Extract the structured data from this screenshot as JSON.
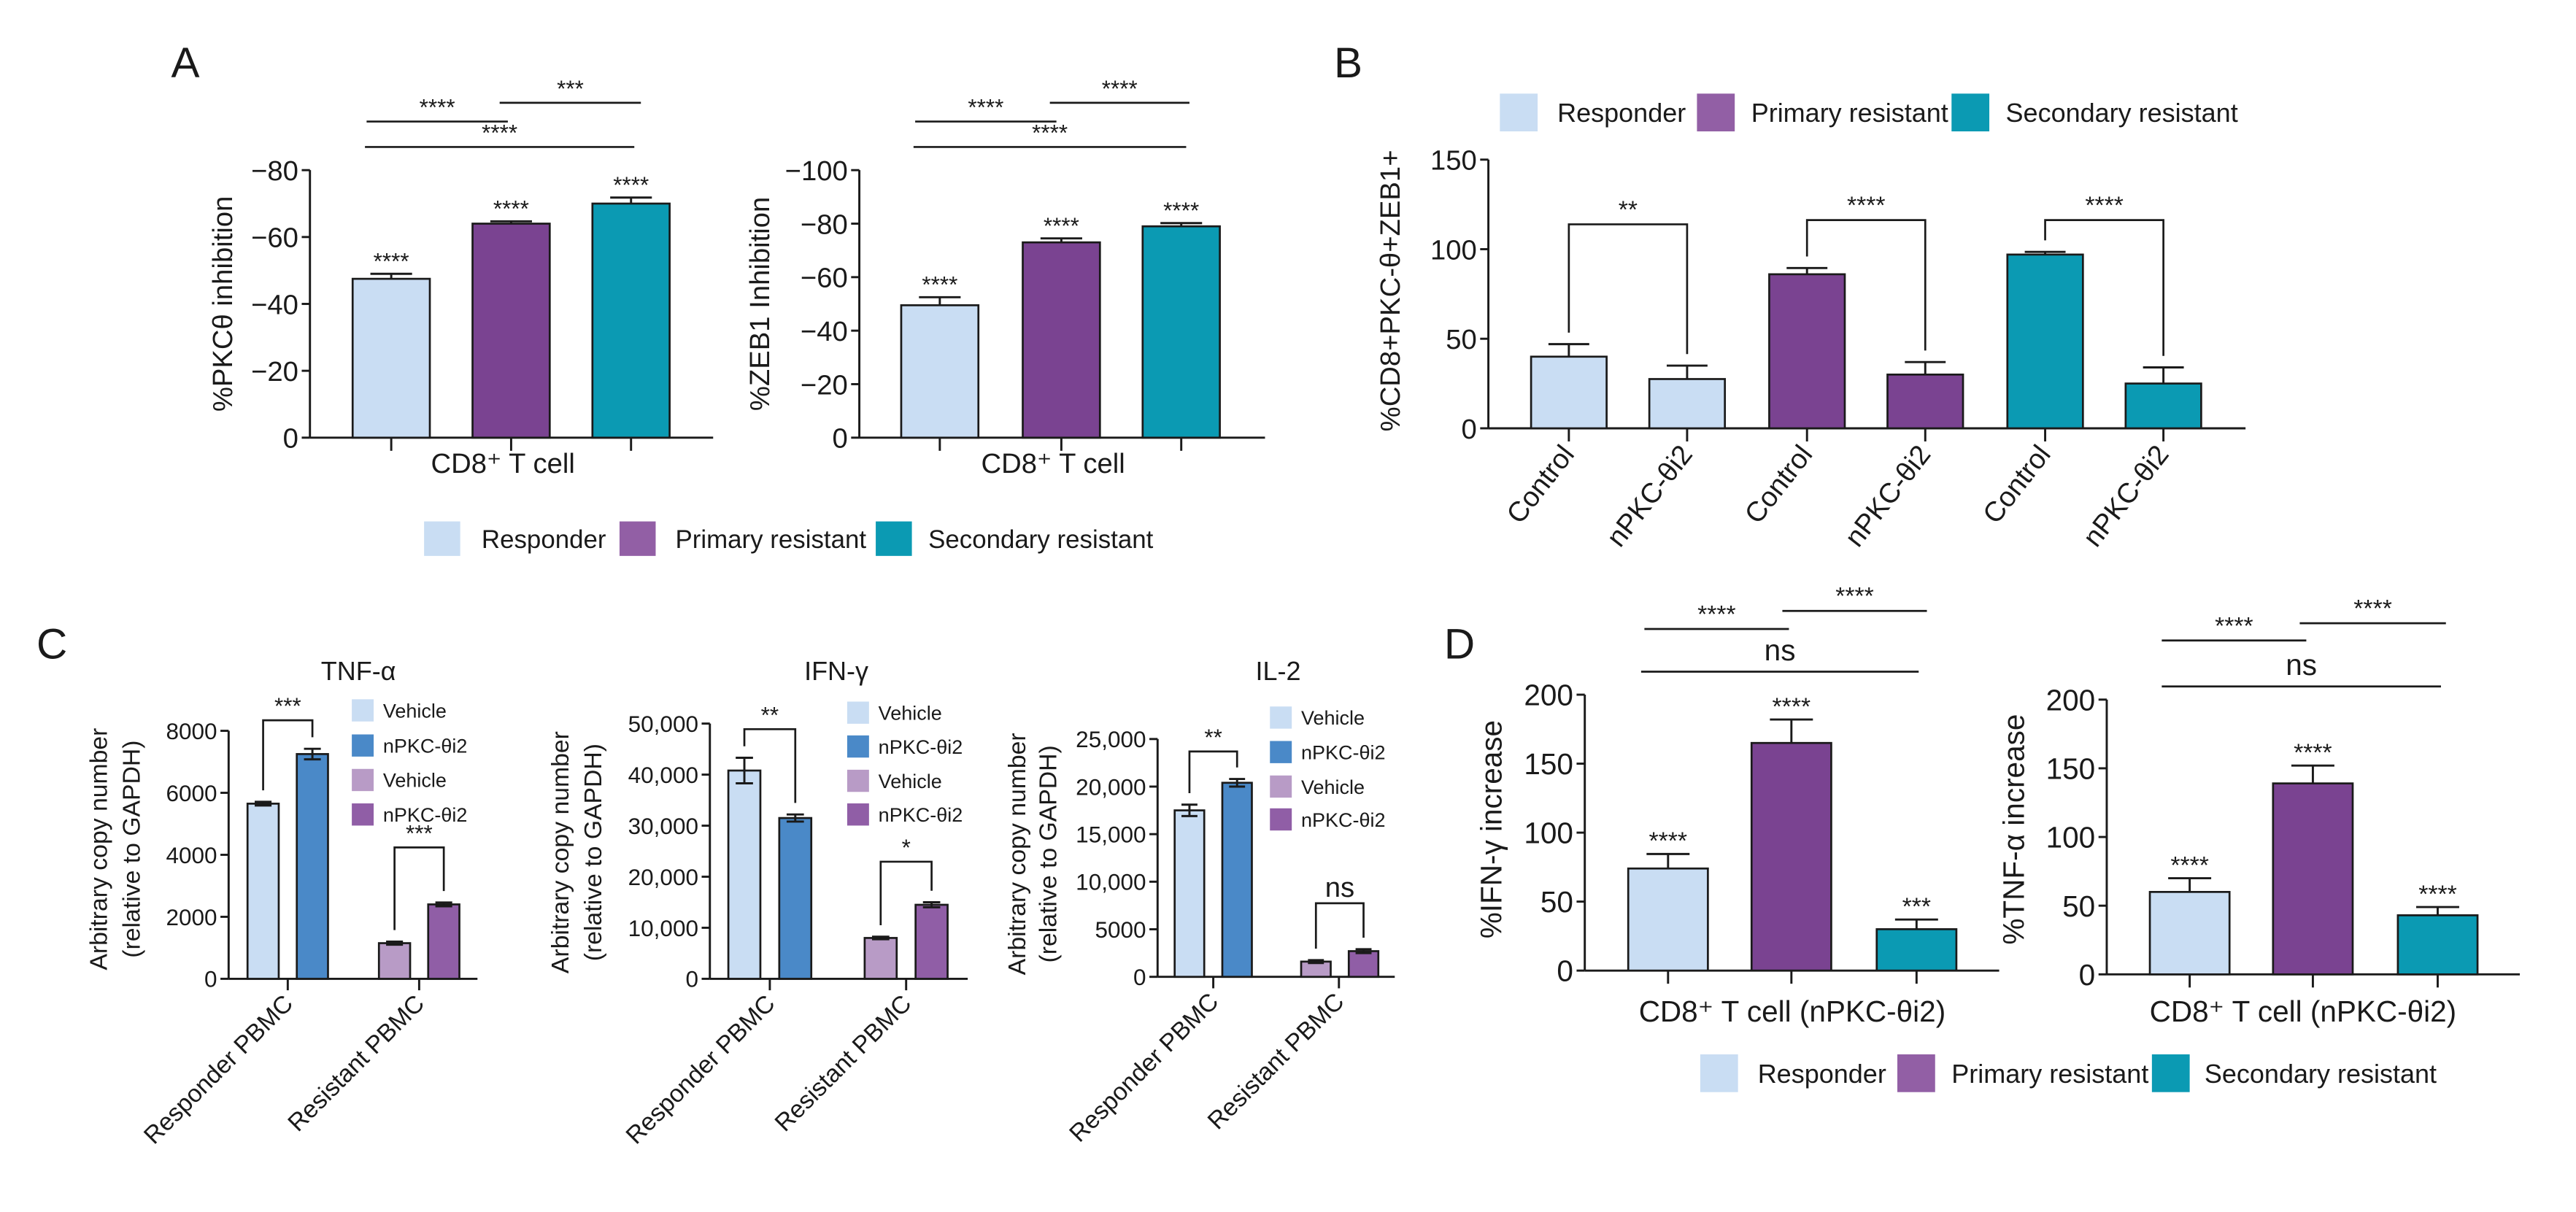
{
  "panel_letters": {
    "A": "A",
    "B": "B",
    "C": "C",
    "D": "D"
  },
  "legends": {
    "A": [
      {
        "label": "Responder",
        "color": "#c9ddf3"
      },
      {
        "label": "Primary resistant",
        "color": "#925fa5"
      },
      {
        "label": "Secondary resistant",
        "color": "#0b9ab3"
      }
    ],
    "B": [
      {
        "label": "Responder",
        "color": "#c9ddf3"
      },
      {
        "label": "Primary resistant",
        "color": "#925fa5"
      },
      {
        "label": "Secondary resistant",
        "color": "#0b9ab3"
      }
    ],
    "D": [
      {
        "label": "Responder",
        "color": "#c9ddf3"
      },
      {
        "label": "Primary resistant",
        "color": "#925fa5"
      },
      {
        "label": "Secondary resistant",
        "color": "#0b9ab3"
      }
    ]
  },
  "chart_data": [
    {
      "id": "A1",
      "panel": "A",
      "type": "bar",
      "title": "",
      "ylabel": "%PKCθ inhibition",
      "xlabel": "CD8⁺ T cell",
      "ylim": [
        0,
        -80
      ],
      "yticks": [
        0,
        -20,
        -40,
        -60,
        -80
      ],
      "ytick_labels": [
        "0",
        "−20",
        "−40",
        "−60",
        "−80"
      ],
      "bars": [
        {
          "group": "Responder",
          "value": -47.5,
          "error": 1.5,
          "color": "#c9ddf3",
          "sig": "****"
        },
        {
          "group": "Primary resistant",
          "value": -64,
          "error": 0.7,
          "color": "#7a4391",
          "sig": "****"
        },
        {
          "group": "Secondary resistant",
          "value": -70,
          "error": 1.8,
          "color": "#0b9ab3",
          "sig": "****"
        }
      ],
      "comparisons": [
        {
          "from": 0,
          "to": 1,
          "label": "****"
        },
        {
          "from": 1,
          "to": 2,
          "label": "***"
        },
        {
          "from": 0,
          "to": 2,
          "label": "****"
        }
      ]
    },
    {
      "id": "A2",
      "panel": "A",
      "type": "bar",
      "title": "",
      "ylabel": "%ZEB1 Inhibition",
      "xlabel": "CD8⁺ T cell",
      "ylim": [
        0,
        -100
      ],
      "yticks": [
        0,
        -20,
        -40,
        -60,
        -80,
        -100
      ],
      "ytick_labels": [
        "0",
        "−20",
        "−40",
        "−60",
        "−80",
        "−100"
      ],
      "bars": [
        {
          "group": "Responder",
          "value": -49.5,
          "error": 3,
          "color": "#c9ddf3",
          "sig": "****"
        },
        {
          "group": "Primary resistant",
          "value": -73,
          "error": 1.5,
          "color": "#7a4391",
          "sig": "****"
        },
        {
          "group": "Secondary resistant",
          "value": -79,
          "error": 1.2,
          "color": "#0b9ab3",
          "sig": "****"
        }
      ],
      "comparisons": [
        {
          "from": 0,
          "to": 1,
          "label": "****"
        },
        {
          "from": 1,
          "to": 2,
          "label": "****"
        },
        {
          "from": 0,
          "to": 2,
          "label": "****"
        }
      ]
    },
    {
      "id": "B",
      "panel": "B",
      "type": "bar",
      "title": "",
      "ylabel": "%CD8+PKC-θ+ZEB1+",
      "xlabel": "",
      "ylim": [
        0,
        150
      ],
      "yticks": [
        0,
        50,
        100,
        150
      ],
      "ytick_labels": [
        "0",
        "50",
        "100",
        "150"
      ],
      "bars": [
        {
          "group": "Responder",
          "label": "Control",
          "value": 40,
          "error": 7,
          "color": "#c9ddf3"
        },
        {
          "group": "Responder",
          "label": "nPKC-θi2",
          "value": 27.5,
          "error": 7.5,
          "color": "#c9ddf3"
        },
        {
          "group": "Primary resistant",
          "label": "Control",
          "value": 86,
          "error": 3.5,
          "color": "#7a4391"
        },
        {
          "group": "Primary resistant",
          "label": "nPKC-θi2",
          "value": 30,
          "error": 7,
          "color": "#7a4391"
        },
        {
          "group": "Secondary resistant",
          "label": "Control",
          "value": 97,
          "error": 1.5,
          "color": "#0b9ab3"
        },
        {
          "group": "Secondary resistant",
          "label": "nPKC-θi2",
          "value": 25,
          "error": 9,
          "color": "#0b9ab3"
        }
      ],
      "comparisons": [
        {
          "from": 0,
          "to": 1,
          "label": "**"
        },
        {
          "from": 2,
          "to": 3,
          "label": "****"
        },
        {
          "from": 4,
          "to": 5,
          "label": "****"
        }
      ]
    },
    {
      "id": "C1",
      "panel": "C",
      "type": "bar",
      "title": "TNF-α",
      "ylabel": "Arbitrary copy number",
      "ylabel2": "(relative to GAPDH)",
      "xlabel": "",
      "ylim": [
        0,
        8000
      ],
      "yticks": [
        0,
        2000,
        4000,
        6000,
        8000
      ],
      "ytick_labels": [
        "0",
        "2000",
        "4000",
        "6000",
        "8000"
      ],
      "categories": [
        "Responder PBMC",
        "Resistant PBMC"
      ],
      "legend": [
        {
          "label": "Vehicle",
          "color": "#c9ddf3"
        },
        {
          "label": "nPKC-θi2",
          "color": "#4a89c8"
        },
        {
          "label": "Vehicle",
          "color": "#b89bc6"
        },
        {
          "label": "nPKC-θi2",
          "color": "#905ea6"
        }
      ],
      "bars": [
        {
          "category": "Responder PBMC",
          "series": "Vehicle",
          "value": 5650,
          "error": 60,
          "color": "#c9ddf3"
        },
        {
          "category": "Responder PBMC",
          "series": "nPKC-θi2",
          "value": 7250,
          "error": 170,
          "color": "#4a89c8"
        },
        {
          "category": "Resistant PBMC",
          "series": "Vehicle",
          "value": 1150,
          "error": 50,
          "color": "#b89bc6"
        },
        {
          "category": "Resistant PBMC",
          "series": "nPKC-θi2",
          "value": 2400,
          "error": 60,
          "color": "#905ea6"
        }
      ],
      "comparisons": [
        {
          "from": 0,
          "to": 1,
          "label": "***"
        },
        {
          "from": 2,
          "to": 3,
          "label": "***"
        }
      ]
    },
    {
      "id": "C2",
      "panel": "C",
      "type": "bar",
      "title": "IFN-γ",
      "ylabel": "Arbitrary copy number",
      "ylabel2": "(relative to GAPDH)",
      "xlabel": "",
      "ylim": [
        0,
        50000
      ],
      "yticks": [
        0,
        10000,
        20000,
        30000,
        40000,
        50000
      ],
      "ytick_labels": [
        "0",
        "10,000",
        "20,000",
        "30,000",
        "40,000",
        "50,000"
      ],
      "categories": [
        "Responder PBMC",
        "Resistant PBMC"
      ],
      "legend": [
        {
          "label": "Vehicle",
          "color": "#c9ddf3"
        },
        {
          "label": "nPKC-θi2",
          "color": "#4a89c8"
        },
        {
          "label": "Vehicle",
          "color": "#b89bc6"
        },
        {
          "label": "nPKC-θi2",
          "color": "#905ea6"
        }
      ],
      "bars": [
        {
          "category": "Responder PBMC",
          "series": "Vehicle",
          "value": 40800,
          "error": 2500,
          "color": "#c9ddf3"
        },
        {
          "category": "Responder PBMC",
          "series": "nPKC-θi2",
          "value": 31500,
          "error": 700,
          "color": "#4a89c8"
        },
        {
          "category": "Resistant PBMC",
          "series": "Vehicle",
          "value": 8000,
          "error": 250,
          "color": "#b89bc6"
        },
        {
          "category": "Resistant PBMC",
          "series": "nPKC-θi2",
          "value": 14500,
          "error": 500,
          "color": "#905ea6"
        }
      ],
      "comparisons": [
        {
          "from": 0,
          "to": 1,
          "label": "**"
        },
        {
          "from": 2,
          "to": 3,
          "label": "*"
        }
      ]
    },
    {
      "id": "C3",
      "panel": "C",
      "type": "bar",
      "title": "IL-2",
      "ylabel": "Arbitrary copy number",
      "ylabel2": "(relative to GAPDH)",
      "xlabel": "",
      "ylim": [
        0,
        25000
      ],
      "yticks": [
        0,
        5000,
        10000,
        15000,
        20000,
        25000
      ],
      "ytick_labels": [
        "0",
        "5000",
        "10,000",
        "15,000",
        "20,000",
        "25,000"
      ],
      "categories": [
        "Responder PBMC",
        "Resistant PBMC"
      ],
      "legend": [
        {
          "label": "Vehicle",
          "color": "#c9ddf3"
        },
        {
          "label": "nPKC-θi2",
          "color": "#4a89c8"
        },
        {
          "label": "Vehicle",
          "color": "#b89bc6"
        },
        {
          "label": "nPKC-θi2",
          "color": "#905ea6"
        }
      ],
      "bars": [
        {
          "category": "Responder PBMC",
          "series": "Vehicle",
          "value": 17500,
          "error": 600,
          "color": "#c9ddf3"
        },
        {
          "category": "Responder PBMC",
          "series": "nPKC-θi2",
          "value": 20400,
          "error": 400,
          "color": "#4a89c8"
        },
        {
          "category": "Resistant PBMC",
          "series": "Vehicle",
          "value": 1600,
          "error": 150,
          "color": "#b89bc6"
        },
        {
          "category": "Resistant PBMC",
          "series": "nPKC-θi2",
          "value": 2700,
          "error": 200,
          "color": "#905ea6"
        }
      ],
      "comparisons": [
        {
          "from": 0,
          "to": 1,
          "label": "**"
        },
        {
          "from": 2,
          "to": 3,
          "label": "ns"
        }
      ]
    },
    {
      "id": "D1",
      "panel": "D",
      "type": "bar",
      "title": "",
      "ylabel": "%IFN-γ increase",
      "xlabel": "CD8⁺ T cell (nPKC-θi2)",
      "ylim": [
        0,
        200
      ],
      "yticks": [
        0,
        50,
        100,
        150,
        200
      ],
      "ytick_labels": [
        "0",
        "50",
        "100",
        "150",
        "200"
      ],
      "bars": [
        {
          "group": "Responder",
          "value": 74,
          "error": 10.5,
          "color": "#c9ddf3",
          "sig": "****"
        },
        {
          "group": "Primary resistant",
          "value": 165,
          "error": 17,
          "color": "#7a4391",
          "sig": "****"
        },
        {
          "group": "Secondary resistant",
          "value": 30,
          "error": 7,
          "color": "#0b9ab3",
          "sig": "***"
        }
      ],
      "comparisons": [
        {
          "from": 0,
          "to": 1,
          "label": "****"
        },
        {
          "from": 1,
          "to": 2,
          "label": "****"
        },
        {
          "from": 0,
          "to": 2,
          "label": "ns"
        }
      ]
    },
    {
      "id": "D2",
      "panel": "D",
      "type": "bar",
      "title": "",
      "ylabel": "%TNF-α increase",
      "xlabel": "CD8⁺ T cell (nPKC-θi2)",
      "ylim": [
        0,
        200
      ],
      "yticks": [
        0,
        50,
        100,
        150,
        200
      ],
      "ytick_labels": [
        "0",
        "50",
        "100",
        "150",
        "200"
      ],
      "bars": [
        {
          "group": "Responder",
          "value": 60,
          "error": 10,
          "color": "#c9ddf3",
          "sig": "****"
        },
        {
          "group": "Primary resistant",
          "value": 139,
          "error": 13,
          "color": "#7a4391",
          "sig": "****"
        },
        {
          "group": "Secondary resistant",
          "value": 43,
          "error": 6,
          "color": "#0b9ab3",
          "sig": "****"
        }
      ],
      "comparisons": [
        {
          "from": 0,
          "to": 1,
          "label": "****"
        },
        {
          "from": 1,
          "to": 2,
          "label": "****"
        },
        {
          "from": 0,
          "to": 2,
          "label": "ns"
        }
      ]
    }
  ]
}
